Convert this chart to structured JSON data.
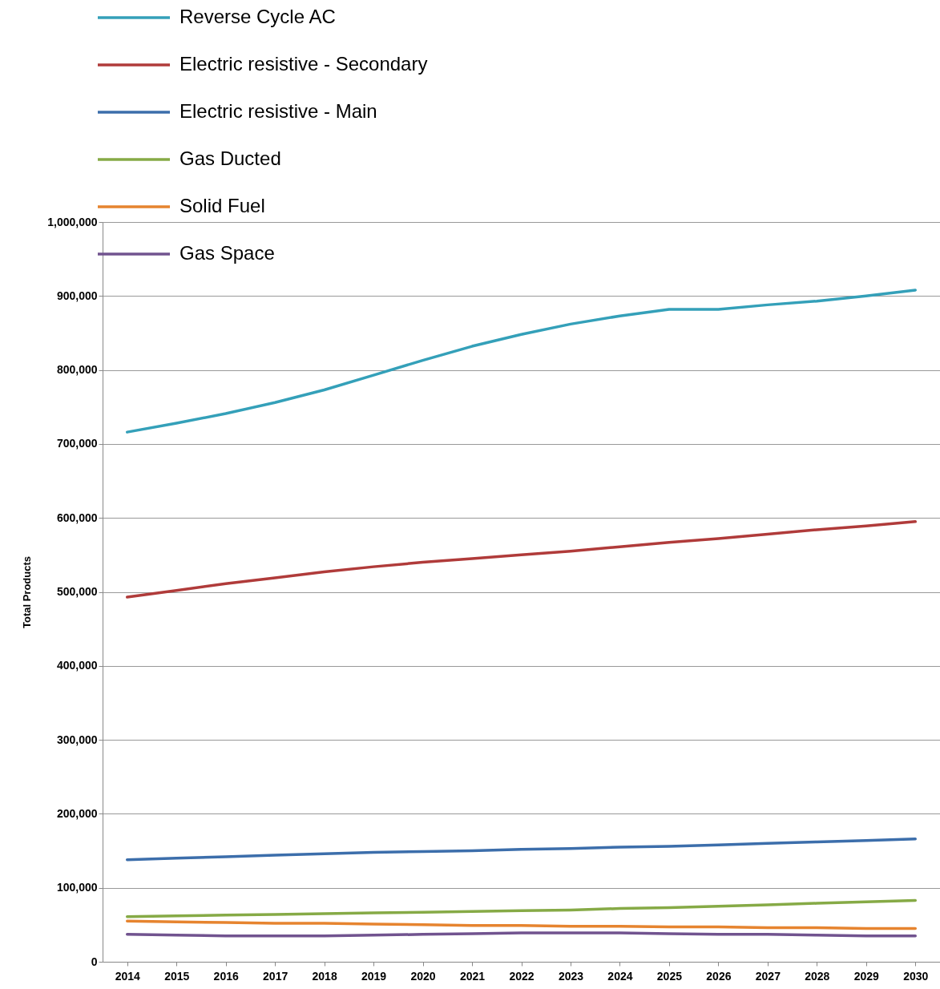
{
  "chart_data": {
    "type": "line",
    "ylabel": "Total Products",
    "categories": [
      "2014",
      "2015",
      "2016",
      "2017",
      "2018",
      "2019",
      "2020",
      "2021",
      "2022",
      "2023",
      "2024",
      "2025",
      "2026",
      "2027",
      "2028",
      "2029",
      "2030"
    ],
    "series": [
      {
        "name": "Reverse Cycle AC",
        "color": "#34a0b9",
        "values": [
          716000,
          728000,
          741000,
          756000,
          773000,
          793000,
          813000,
          832000,
          848000,
          862000,
          873000,
          882000,
          882000,
          888000,
          893000,
          900000,
          908000
        ]
      },
      {
        "name": "Electric resistive - Secondary",
        "color": "#b03b3a",
        "values": [
          493000,
          502000,
          511000,
          519000,
          527000,
          534000,
          540000,
          545000,
          550000,
          555000,
          561000,
          567000,
          572000,
          578000,
          584000,
          589000,
          595000
        ]
      },
      {
        "name": "Electric resistive - Main",
        "color": "#3c6eab",
        "values": [
          138000,
          140000,
          142000,
          144000,
          146000,
          148000,
          149000,
          150000,
          152000,
          153000,
          155000,
          156000,
          158000,
          160000,
          162000,
          164000,
          166000
        ]
      },
      {
        "name": "Gas Ducted",
        "color": "#86aa46",
        "values": [
          61000,
          62000,
          63000,
          64000,
          65000,
          66000,
          67000,
          68000,
          69000,
          70000,
          72000,
          73000,
          75000,
          77000,
          79000,
          81000,
          83000
        ]
      },
      {
        "name": "Solid Fuel",
        "color": "#e6842f",
        "values": [
          55000,
          54000,
          53000,
          52000,
          52000,
          51000,
          50000,
          49000,
          49000,
          48000,
          48000,
          47000,
          47000,
          46000,
          46000,
          45000,
          45000
        ]
      },
      {
        "name": "Gas Space",
        "color": "#71538f",
        "values": [
          37000,
          36000,
          35000,
          35000,
          35000,
          36000,
          37000,
          38000,
          39000,
          39000,
          39000,
          38000,
          37000,
          37000,
          36000,
          35000,
          35000
        ]
      }
    ],
    "ylim": [
      0,
      1000000
    ],
    "yticks": [
      0,
      {
        "value": 100000,
        "label": "100,000"
      },
      {
        "value": 200000,
        "label": "200,000"
      },
      {
        "value": 300000,
        "label": "300,000"
      },
      {
        "value": 400000,
        "label": "400,000"
      },
      {
        "value": 500000,
        "label": "500,000"
      },
      {
        "value": 600000,
        "label": "600,000"
      },
      {
        "value": 700000,
        "label": "700,000"
      },
      {
        "value": 800000,
        "label": "800,000"
      },
      {
        "value": 900000,
        "label": "900,000"
      },
      {
        "value": 1000000,
        "label": "1,000,000"
      }
    ],
    "grid": "y",
    "legend": "top left"
  }
}
